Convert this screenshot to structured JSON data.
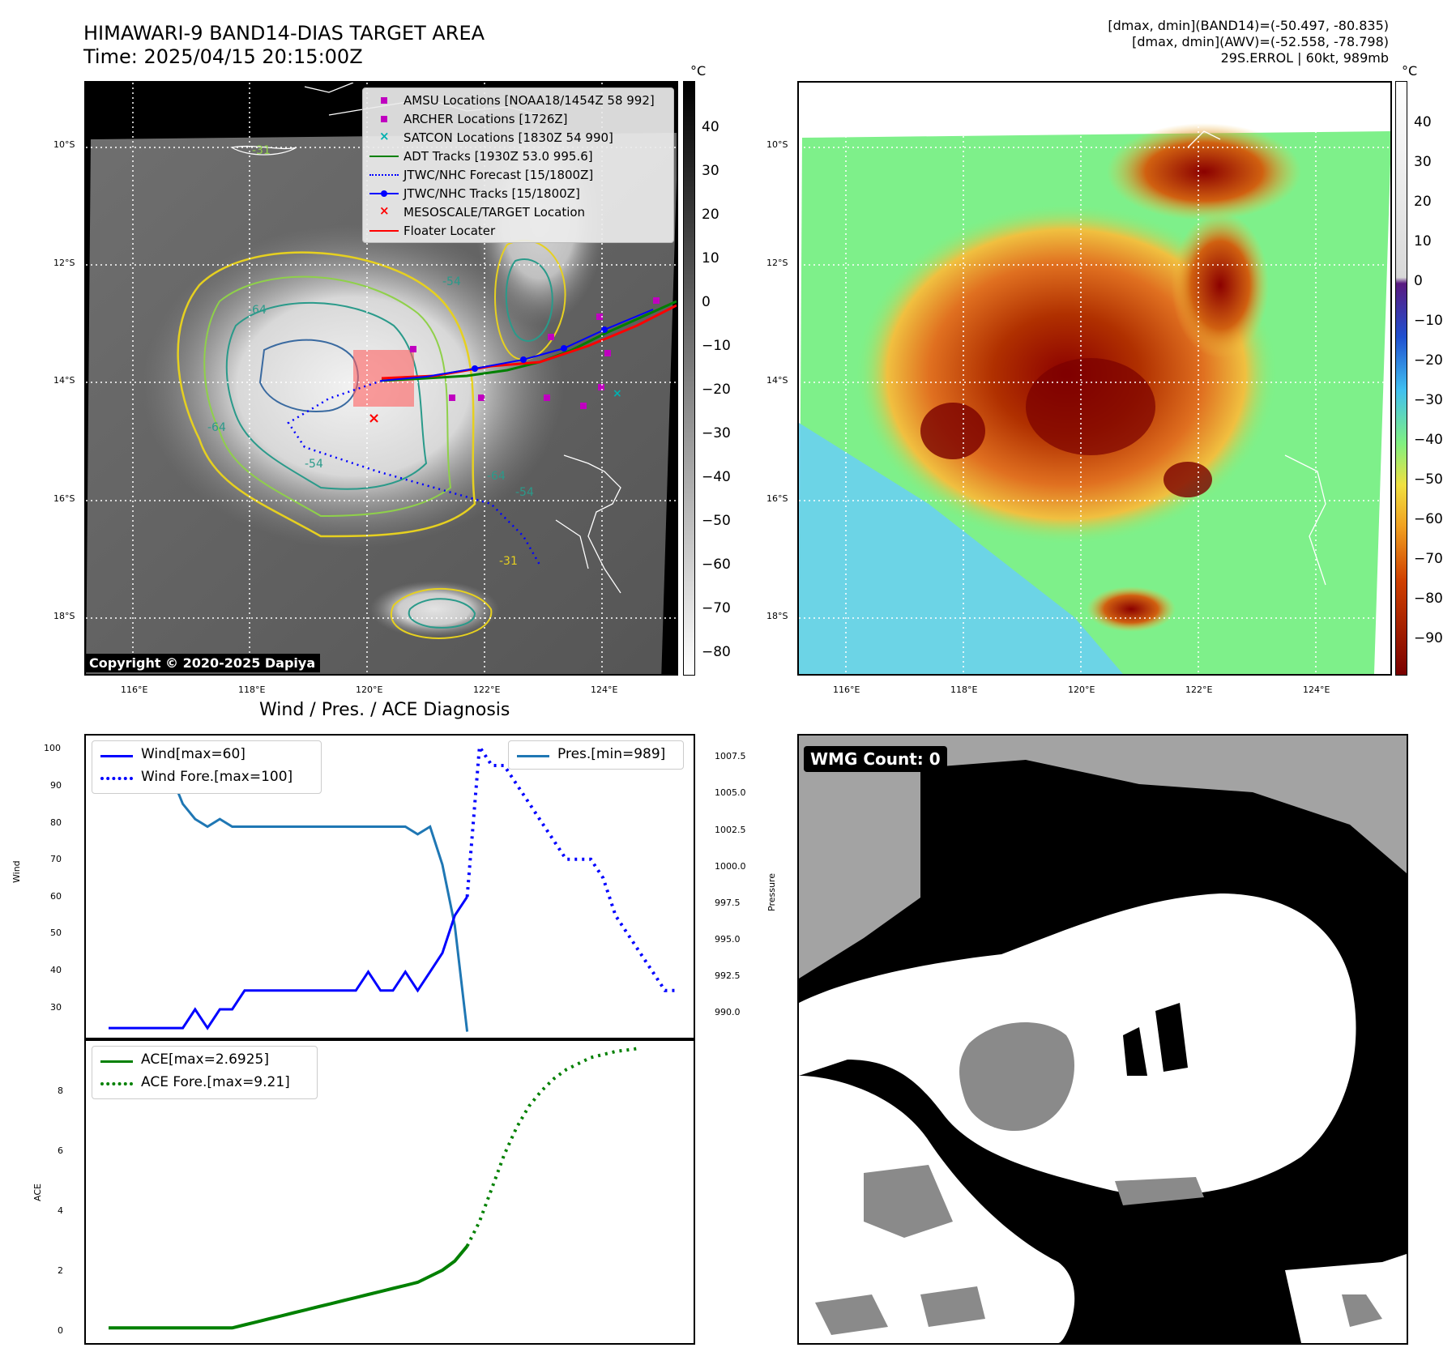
{
  "header": {
    "title": "HIMAWARI-9 BAND14-DIAS TARGET AREA",
    "time": "Time: 2025/04/15 20:15:00Z",
    "info_line1": "[dmax, dmin](BAND14)=(-50.497, -80.835)",
    "info_line2": "[dmax, dmin](AWV)=(-52.558, -78.798)",
    "info_line3": "29S.ERROL | 60kt, 989mb"
  },
  "map": {
    "lat_labels": [
      "10°S",
      "12°S",
      "14°S",
      "16°S",
      "18°S"
    ],
    "lon_labels": [
      "116°E",
      "118°E",
      "120°E",
      "122°E",
      "124°E"
    ],
    "contour_labels": [
      "-31",
      "-54",
      "-64",
      "-64",
      "-54",
      "-64",
      "-54",
      "-31"
    ],
    "copyright": "Copyright © 2020-2025 Dapiya",
    "legend": [
      {
        "label": "AMSU Locations [NOAA18/1454Z 58 992]",
        "symbol": "square",
        "color": "#c000c0"
      },
      {
        "label": "ARCHER Locations [1726Z]",
        "symbol": "square",
        "color": "#c000c0"
      },
      {
        "label": "SATCON Locations [1830Z 54 990]",
        "symbol": "x",
        "color": "#00b0b0"
      },
      {
        "label": "ADT Tracks [1930Z 53.0 995.6]",
        "symbol": "line",
        "color": "#008000"
      },
      {
        "label": "JTWC/NHC Forecast [15/1800Z]",
        "symbol": "dotted",
        "color": "#0000ff"
      },
      {
        "label": "JTWC/NHC Tracks [15/1800Z]",
        "symbol": "line-dot",
        "color": "#0000ff"
      },
      {
        "label": "MESOSCALE/TARGET Location",
        "symbol": "x",
        "color": "#ff0000"
      },
      {
        "label": "Floater Locater",
        "symbol": "line",
        "color": "#ff0000"
      }
    ]
  },
  "colorbar_gray": {
    "unit": "°C",
    "ticks": [
      "40",
      "30",
      "20",
      "10",
      "0",
      "−10",
      "−20",
      "−30",
      "−40",
      "−50",
      "−60",
      "−70",
      "−80"
    ]
  },
  "colorbar_color": {
    "unit": "°C",
    "ticks": [
      "40",
      "30",
      "20",
      "10",
      "0",
      "−10",
      "−20",
      "−30",
      "−40",
      "−50",
      "−60",
      "−70",
      "−80",
      "−90"
    ]
  },
  "wind_panel": {
    "title": "Wind / Pres. / ACE Diagnosis",
    "ylabel_left": "Wind",
    "ylabel_right": "Pressure",
    "wind_ticks": [
      "100",
      "90",
      "80",
      "70",
      "60",
      "50",
      "40",
      "30"
    ],
    "pres_ticks": [
      "1007.5",
      "1005.0",
      "1002.5",
      "1000.0",
      "997.5",
      "995.0",
      "992.5",
      "990.0"
    ],
    "legend_wind": "Wind[max=60]",
    "legend_wind_fore": "Wind Fore.[max=100]",
    "legend_pres": "Pres.[min=989]"
  },
  "ace_panel": {
    "ylabel": "ACE",
    "ticks": [
      "8",
      "6",
      "4",
      "2",
      "0"
    ],
    "legend_ace": "ACE[max=2.6925]",
    "legend_ace_fore": "ACE Fore.[max=9.21]"
  },
  "wmg": {
    "label": "WMG Count: 0"
  },
  "chart_data": [
    {
      "type": "line",
      "title": "Wind / Pres. / ACE Diagnosis",
      "ylabel": "Wind",
      "ylim": [
        22,
        103
      ],
      "series": [
        {
          "name": "Wind[max=60]",
          "color": "#0000ff",
          "values": [
            25,
            25,
            25,
            25,
            25,
            25,
            25,
            30,
            25,
            30,
            30,
            35,
            35,
            35,
            35,
            35,
            35,
            35,
            35,
            35,
            35,
            40,
            35,
            35,
            40,
            35,
            40,
            45,
            55,
            60
          ]
        },
        {
          "name": "Wind Fore.[max=100]",
          "color": "#0000ff",
          "style": "dotted",
          "values": [
            100,
            95,
            95,
            90,
            85,
            80,
            75,
            70,
            70,
            70,
            65,
            55,
            50,
            45,
            40,
            35,
            35,
            35,
            30,
            30
          ]
        }
      ]
    },
    {
      "type": "line",
      "ylabel": "Pressure",
      "ylim": [
        988.5,
        1008.5
      ],
      "series": [
        {
          "name": "Pres.[min=989]",
          "color": "#1f77b4",
          "values": [
            1008,
            1008,
            1006.5,
            1006.5,
            1006,
            1006,
            1004,
            1003,
            1002.5,
            1003,
            1002.5,
            1002.5,
            1002.5,
            1002.5,
            1002.5,
            1002.5,
            1002.5,
            1002.5,
            1002.5,
            1002.5,
            1002.5,
            1002.5,
            1002.5,
            1002.5,
            1002.5,
            1002,
            1002.5,
            1000,
            996,
            989
          ]
        }
      ]
    },
    {
      "type": "line",
      "ylabel": "ACE",
      "ylim": [
        -0.5,
        9.5
      ],
      "series": [
        {
          "name": "ACE[max=2.6925]",
          "color": "#008000",
          "values": [
            0,
            0,
            0,
            0,
            0,
            0,
            0,
            0,
            0,
            0,
            0,
            0.1,
            0.2,
            0.3,
            0.4,
            0.5,
            0.6,
            0.7,
            0.8,
            0.9,
            1.0,
            1.1,
            1.2,
            1.3,
            1.4,
            1.5,
            1.7,
            1.9,
            2.2,
            2.6925
          ]
        },
        {
          "name": "ACE Fore.[max=9.21]",
          "color": "#008000",
          "style": "dotted",
          "values": [
            2.6925,
            3.5,
            4.6,
            5.7,
            6.6,
            7.3,
            7.8,
            8.2,
            8.5,
            8.7,
            8.9,
            9.0,
            9.1,
            9.15,
            9.21
          ]
        }
      ]
    }
  ]
}
